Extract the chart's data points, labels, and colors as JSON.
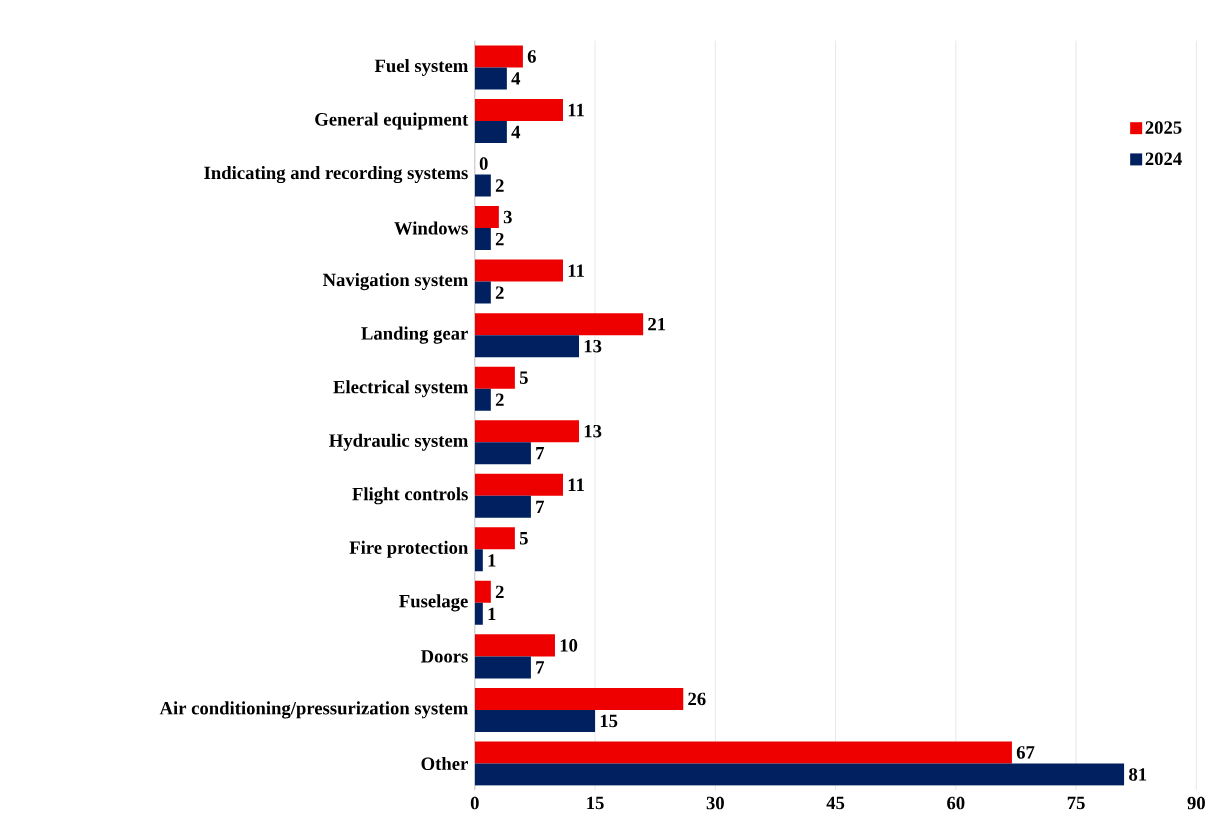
{
  "chart_data": {
    "type": "bar",
    "orientation": "horizontal",
    "categories": [
      "Fuel system",
      "General equipment",
      "Indicating and recording systems",
      "Windows",
      "Navigation system",
      "Landing gear",
      "Electrical system",
      "Hydraulic system",
      "Flight controls",
      "Fire protection",
      "Fuselage",
      "Doors",
      "Air conditioning/pressurization system",
      "Other"
    ],
    "series": [
      {
        "name": "2025",
        "color": "#ee0000",
        "values": [
          6,
          11,
          0,
          3,
          11,
          21,
          5,
          13,
          11,
          5,
          2,
          10,
          26,
          67
        ]
      },
      {
        "name": "2024",
        "color": "#002060",
        "values": [
          4,
          4,
          2,
          2,
          2,
          13,
          2,
          7,
          7,
          1,
          1,
          7,
          15,
          81
        ]
      }
    ],
    "xlim": [
      0,
      90
    ],
    "xticks": [
      0,
      15,
      30,
      45,
      60,
      75,
      90
    ],
    "grid": "x",
    "legend": "right",
    "data_labels": true
  }
}
